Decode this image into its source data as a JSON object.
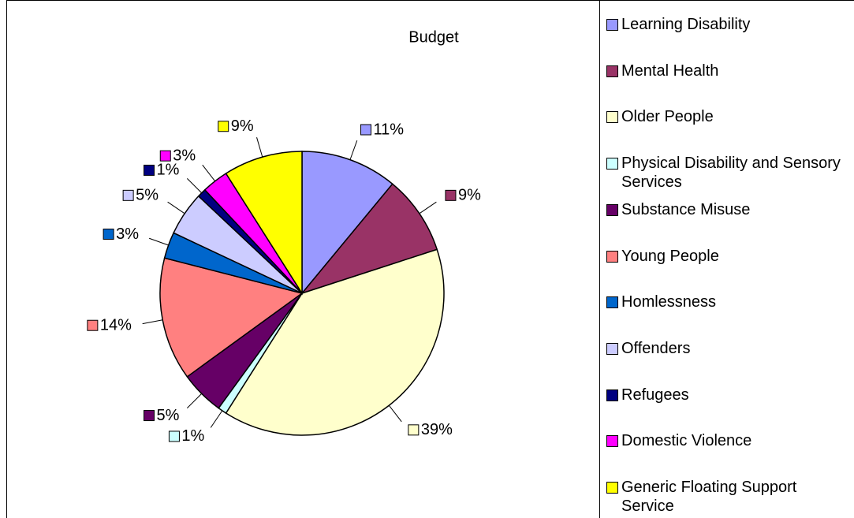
{
  "chart_data": {
    "type": "pie",
    "title": "Budget",
    "categories": [
      "Learning Disability",
      "Mental Health",
      "Older People",
      "Physical Disability and Sensory Services",
      "Substance Misuse",
      "Young People",
      "Homlessness",
      "Offenders",
      "Refugees",
      "Domestic Violence",
      "Generic Floating Support Service"
    ],
    "values": [
      11,
      9,
      39,
      1,
      5,
      14,
      3,
      5,
      1,
      3,
      9
    ],
    "value_labels": [
      "11%",
      "9%",
      "39%",
      "1%",
      "5%",
      "14%",
      "3%",
      "5%",
      "1%",
      "3%",
      "9%"
    ],
    "colors": [
      "#9999ff",
      "#993366",
      "#ffffcc",
      "#ccffff",
      "#660066",
      "#ff8080",
      "#0066cc",
      "#ccccff",
      "#000080",
      "#ff00ff",
      "#ffff00"
    ],
    "legend": "right"
  }
}
